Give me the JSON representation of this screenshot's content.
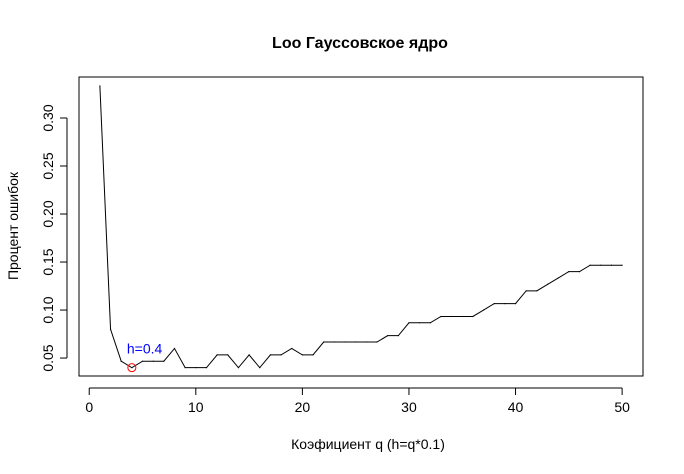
{
  "chart_data": {
    "type": "line",
    "title": "Loo Гауссовское ядро",
    "xlabel": "Коэфициент q (h=q*0.1)",
    "ylabel": "Процент ошибок",
    "xlim": [
      -0.96,
      51.96
    ],
    "ylim": [
      0.0313,
      0.3427
    ],
    "xticks": [
      0,
      10,
      20,
      30,
      40,
      50
    ],
    "xtick_labels": [
      "0",
      "10",
      "20",
      "30",
      "40",
      "50"
    ],
    "yticks": [
      0.05,
      0.1,
      0.15,
      0.2,
      0.25,
      0.3
    ],
    "ytick_labels": [
      "0.05",
      "0.10",
      "0.15",
      "0.20",
      "0.25",
      "0.30"
    ],
    "grid": false,
    "line_color": "#000000",
    "x": [
      1,
      2,
      3,
      4,
      5,
      6,
      7,
      8,
      9,
      10,
      11,
      12,
      13,
      14,
      15,
      16,
      17,
      18,
      19,
      20,
      21,
      22,
      23,
      24,
      25,
      26,
      27,
      28,
      29,
      30,
      31,
      32,
      33,
      34,
      35,
      36,
      37,
      38,
      39,
      40,
      41,
      42,
      43,
      44,
      45,
      46,
      47,
      48,
      49,
      50
    ],
    "values": [
      0.3333,
      0.08,
      0.0467,
      0.04,
      0.0467,
      0.0467,
      0.0467,
      0.06,
      0.04,
      0.04,
      0.04,
      0.0533,
      0.0533,
      0.04,
      0.0533,
      0.04,
      0.0533,
      0.0533,
      0.06,
      0.0533,
      0.0533,
      0.0667,
      0.0667,
      0.0667,
      0.0667,
      0.0667,
      0.0667,
      0.0733,
      0.0733,
      0.0867,
      0.0867,
      0.0867,
      0.0933,
      0.0933,
      0.0933,
      0.0933,
      0.1,
      0.1067,
      0.1067,
      0.1067,
      0.12,
      0.12,
      0.1267,
      0.1333,
      0.14,
      0.14,
      0.1467,
      0.1467,
      0.1467,
      0.1467
    ],
    "annotation": {
      "text": "h=0.4",
      "x": 4,
      "y": 0.04,
      "text_color": "#0000ff",
      "marker_color": "#ff0000",
      "marker": "open-circle"
    }
  }
}
